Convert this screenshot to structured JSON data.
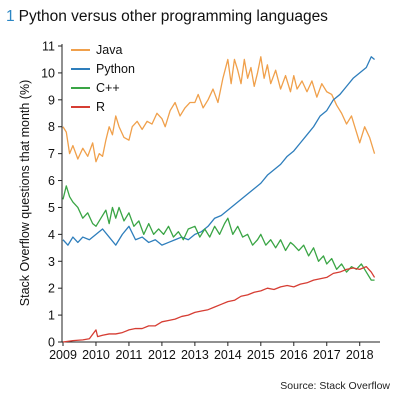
{
  "figure": {
    "number": "1",
    "title": "Python versus other programming languages",
    "source": "Source: Stack Overflow"
  },
  "chart_data": {
    "type": "line",
    "title": "Python versus other programming languages",
    "xlabel": "",
    "ylabel": "Stack Overflow questions that month (%)",
    "xlim": [
      2009,
      2018.6
    ],
    "ylim": [
      0,
      11
    ],
    "x_ticks": [
      2009,
      2010,
      2011,
      2012,
      2013,
      2014,
      2015,
      2016,
      2017,
      2018
    ],
    "y_ticks": [
      0,
      1,
      2,
      3,
      4,
      5,
      6,
      7,
      8,
      9,
      10,
      11
    ],
    "grid": false,
    "legend": "top-left",
    "series": [
      {
        "name": "Java",
        "color": "#f0a04b",
        "points": [
          [
            2009.0,
            8.0
          ],
          [
            2009.1,
            7.8
          ],
          [
            2009.2,
            7.0
          ],
          [
            2009.3,
            7.3
          ],
          [
            2009.45,
            6.8
          ],
          [
            2009.6,
            7.2
          ],
          [
            2009.75,
            6.9
          ],
          [
            2009.9,
            7.4
          ],
          [
            2010.0,
            6.7
          ],
          [
            2010.1,
            7.0
          ],
          [
            2010.2,
            6.9
          ],
          [
            2010.3,
            7.5
          ],
          [
            2010.4,
            8.0
          ],
          [
            2010.5,
            7.7
          ],
          [
            2010.6,
            8.4
          ],
          [
            2010.7,
            8.0
          ],
          [
            2010.85,
            7.6
          ],
          [
            2011.0,
            7.5
          ],
          [
            2011.1,
            8.0
          ],
          [
            2011.25,
            8.2
          ],
          [
            2011.4,
            7.9
          ],
          [
            2011.55,
            8.2
          ],
          [
            2011.7,
            8.1
          ],
          [
            2011.85,
            8.5
          ],
          [
            2012.0,
            8.3
          ],
          [
            2012.1,
            8.0
          ],
          [
            2012.25,
            8.6
          ],
          [
            2012.4,
            8.9
          ],
          [
            2012.55,
            8.4
          ],
          [
            2012.7,
            8.7
          ],
          [
            2012.85,
            8.9
          ],
          [
            2013.0,
            8.9
          ],
          [
            2013.1,
            9.2
          ],
          [
            2013.25,
            8.7
          ],
          [
            2013.4,
            9.0
          ],
          [
            2013.55,
            9.4
          ],
          [
            2013.7,
            8.9
          ],
          [
            2013.85,
            9.8
          ],
          [
            2014.0,
            10.5
          ],
          [
            2014.1,
            9.6
          ],
          [
            2014.2,
            10.5
          ],
          [
            2014.3,
            10.1
          ],
          [
            2014.4,
            9.6
          ],
          [
            2014.5,
            10.5
          ],
          [
            2014.6,
            9.8
          ],
          [
            2014.7,
            10.2
          ],
          [
            2014.8,
            9.5
          ],
          [
            2014.9,
            10.0
          ],
          [
            2015.0,
            10.6
          ],
          [
            2015.1,
            9.8
          ],
          [
            2015.2,
            10.3
          ],
          [
            2015.3,
            9.6
          ],
          [
            2015.45,
            10.1
          ],
          [
            2015.6,
            9.4
          ],
          [
            2015.75,
            9.9
          ],
          [
            2015.9,
            9.3
          ],
          [
            2016.0,
            9.9
          ],
          [
            2016.1,
            9.4
          ],
          [
            2016.25,
            9.7
          ],
          [
            2016.4,
            9.3
          ],
          [
            2016.55,
            9.7
          ],
          [
            2016.7,
            9.1
          ],
          [
            2016.85,
            9.6
          ],
          [
            2017.0,
            9.3
          ],
          [
            2017.15,
            9.2
          ],
          [
            2017.3,
            8.8
          ],
          [
            2017.45,
            8.5
          ],
          [
            2017.6,
            8.1
          ],
          [
            2017.75,
            8.4
          ],
          [
            2017.9,
            7.8
          ],
          [
            2018.0,
            7.4
          ],
          [
            2018.15,
            8.0
          ],
          [
            2018.3,
            7.6
          ],
          [
            2018.45,
            7.0
          ]
        ]
      },
      {
        "name": "Python",
        "color": "#2e7ebc",
        "points": [
          [
            2009.0,
            3.8
          ],
          [
            2009.15,
            3.6
          ],
          [
            2009.3,
            3.9
          ],
          [
            2009.45,
            3.7
          ],
          [
            2009.6,
            3.9
          ],
          [
            2009.8,
            3.8
          ],
          [
            2010.0,
            4.0
          ],
          [
            2010.2,
            4.2
          ],
          [
            2010.4,
            3.9
          ],
          [
            2010.6,
            3.6
          ],
          [
            2010.8,
            4.0
          ],
          [
            2011.0,
            4.3
          ],
          [
            2011.2,
            3.8
          ],
          [
            2011.4,
            3.9
          ],
          [
            2011.6,
            3.7
          ],
          [
            2011.8,
            3.8
          ],
          [
            2012.0,
            3.6
          ],
          [
            2012.2,
            3.7
          ],
          [
            2012.4,
            3.8
          ],
          [
            2012.6,
            3.9
          ],
          [
            2012.8,
            3.8
          ],
          [
            2013.0,
            4.0
          ],
          [
            2013.2,
            4.1
          ],
          [
            2013.4,
            4.3
          ],
          [
            2013.6,
            4.6
          ],
          [
            2013.8,
            4.7
          ],
          [
            2014.0,
            4.9
          ],
          [
            2014.2,
            5.1
          ],
          [
            2014.4,
            5.3
          ],
          [
            2014.6,
            5.5
          ],
          [
            2014.8,
            5.7
          ],
          [
            2015.0,
            5.9
          ],
          [
            2015.2,
            6.2
          ],
          [
            2015.4,
            6.4
          ],
          [
            2015.6,
            6.6
          ],
          [
            2015.8,
            6.9
          ],
          [
            2016.0,
            7.1
          ],
          [
            2016.2,
            7.4
          ],
          [
            2016.4,
            7.7
          ],
          [
            2016.6,
            8.0
          ],
          [
            2016.8,
            8.4
          ],
          [
            2017.0,
            8.6
          ],
          [
            2017.2,
            9.0
          ],
          [
            2017.4,
            9.2
          ],
          [
            2017.6,
            9.5
          ],
          [
            2017.8,
            9.8
          ],
          [
            2018.0,
            10.0
          ],
          [
            2018.2,
            10.2
          ],
          [
            2018.35,
            10.6
          ],
          [
            2018.45,
            10.5
          ]
        ]
      },
      {
        "name": "C++",
        "color": "#3aa545",
        "points": [
          [
            2009.0,
            5.3
          ],
          [
            2009.1,
            5.8
          ],
          [
            2009.2,
            5.4
          ],
          [
            2009.3,
            5.2
          ],
          [
            2009.45,
            5.0
          ],
          [
            2009.6,
            4.6
          ],
          [
            2009.75,
            4.8
          ],
          [
            2009.9,
            4.4
          ],
          [
            2010.0,
            4.3
          ],
          [
            2010.15,
            4.6
          ],
          [
            2010.3,
            4.9
          ],
          [
            2010.4,
            4.4
          ],
          [
            2010.5,
            5.0
          ],
          [
            2010.6,
            4.6
          ],
          [
            2010.7,
            5.0
          ],
          [
            2010.85,
            4.5
          ],
          [
            2011.0,
            4.8
          ],
          [
            2011.15,
            4.3
          ],
          [
            2011.3,
            4.5
          ],
          [
            2011.45,
            4.0
          ],
          [
            2011.6,
            4.4
          ],
          [
            2011.75,
            4.0
          ],
          [
            2011.9,
            4.2
          ],
          [
            2012.05,
            4.0
          ],
          [
            2012.2,
            4.3
          ],
          [
            2012.35,
            3.9
          ],
          [
            2012.5,
            4.1
          ],
          [
            2012.65,
            3.8
          ],
          [
            2012.8,
            4.2
          ],
          [
            2013.0,
            4.3
          ],
          [
            2013.15,
            3.9
          ],
          [
            2013.3,
            4.2
          ],
          [
            2013.45,
            3.9
          ],
          [
            2013.6,
            4.3
          ],
          [
            2013.75,
            4.0
          ],
          [
            2013.9,
            4.4
          ],
          [
            2014.0,
            4.6
          ],
          [
            2014.15,
            4.0
          ],
          [
            2014.3,
            4.3
          ],
          [
            2014.45,
            3.9
          ],
          [
            2014.6,
            4.0
          ],
          [
            2014.75,
            3.6
          ],
          [
            2014.9,
            3.8
          ],
          [
            2015.0,
            4.0
          ],
          [
            2015.15,
            3.6
          ],
          [
            2015.3,
            3.8
          ],
          [
            2015.45,
            3.5
          ],
          [
            2015.6,
            3.8
          ],
          [
            2015.75,
            3.4
          ],
          [
            2015.9,
            3.7
          ],
          [
            2016.0,
            3.6
          ],
          [
            2016.15,
            3.4
          ],
          [
            2016.3,
            3.6
          ],
          [
            2016.45,
            3.2
          ],
          [
            2016.6,
            3.5
          ],
          [
            2016.75,
            3.0
          ],
          [
            2016.9,
            3.2
          ],
          [
            2017.0,
            2.9
          ],
          [
            2017.15,
            3.1
          ],
          [
            2017.3,
            2.7
          ],
          [
            2017.45,
            2.9
          ],
          [
            2017.6,
            2.6
          ],
          [
            2017.75,
            2.8
          ],
          [
            2017.9,
            2.7
          ],
          [
            2018.05,
            2.9
          ],
          [
            2018.2,
            2.6
          ],
          [
            2018.35,
            2.3
          ],
          [
            2018.45,
            2.3
          ]
        ]
      },
      {
        "name": "R",
        "color": "#d63d33",
        "points": [
          [
            2009.0,
            0.0
          ],
          [
            2009.3,
            0.05
          ],
          [
            2009.6,
            0.08
          ],
          [
            2009.8,
            0.12
          ],
          [
            2010.0,
            0.45
          ],
          [
            2010.05,
            0.2
          ],
          [
            2010.2,
            0.25
          ],
          [
            2010.4,
            0.3
          ],
          [
            2010.6,
            0.3
          ],
          [
            2010.8,
            0.35
          ],
          [
            2011.0,
            0.45
          ],
          [
            2011.2,
            0.5
          ],
          [
            2011.4,
            0.5
          ],
          [
            2011.6,
            0.6
          ],
          [
            2011.8,
            0.6
          ],
          [
            2012.0,
            0.75
          ],
          [
            2012.2,
            0.8
          ],
          [
            2012.4,
            0.85
          ],
          [
            2012.6,
            0.95
          ],
          [
            2012.8,
            1.0
          ],
          [
            2013.0,
            1.1
          ],
          [
            2013.2,
            1.15
          ],
          [
            2013.4,
            1.2
          ],
          [
            2013.6,
            1.3
          ],
          [
            2013.8,
            1.4
          ],
          [
            2014.0,
            1.5
          ],
          [
            2014.2,
            1.55
          ],
          [
            2014.4,
            1.7
          ],
          [
            2014.6,
            1.75
          ],
          [
            2014.8,
            1.85
          ],
          [
            2015.0,
            1.9
          ],
          [
            2015.2,
            2.0
          ],
          [
            2015.4,
            1.95
          ],
          [
            2015.6,
            2.05
          ],
          [
            2015.8,
            2.1
          ],
          [
            2016.0,
            2.05
          ],
          [
            2016.2,
            2.15
          ],
          [
            2016.4,
            2.2
          ],
          [
            2016.6,
            2.3
          ],
          [
            2016.8,
            2.35
          ],
          [
            2017.0,
            2.4
          ],
          [
            2017.2,
            2.55
          ],
          [
            2017.4,
            2.6
          ],
          [
            2017.6,
            2.7
          ],
          [
            2017.8,
            2.75
          ],
          [
            2018.0,
            2.7
          ],
          [
            2018.2,
            2.8
          ],
          [
            2018.35,
            2.6
          ],
          [
            2018.45,
            2.4
          ]
        ]
      }
    ]
  }
}
